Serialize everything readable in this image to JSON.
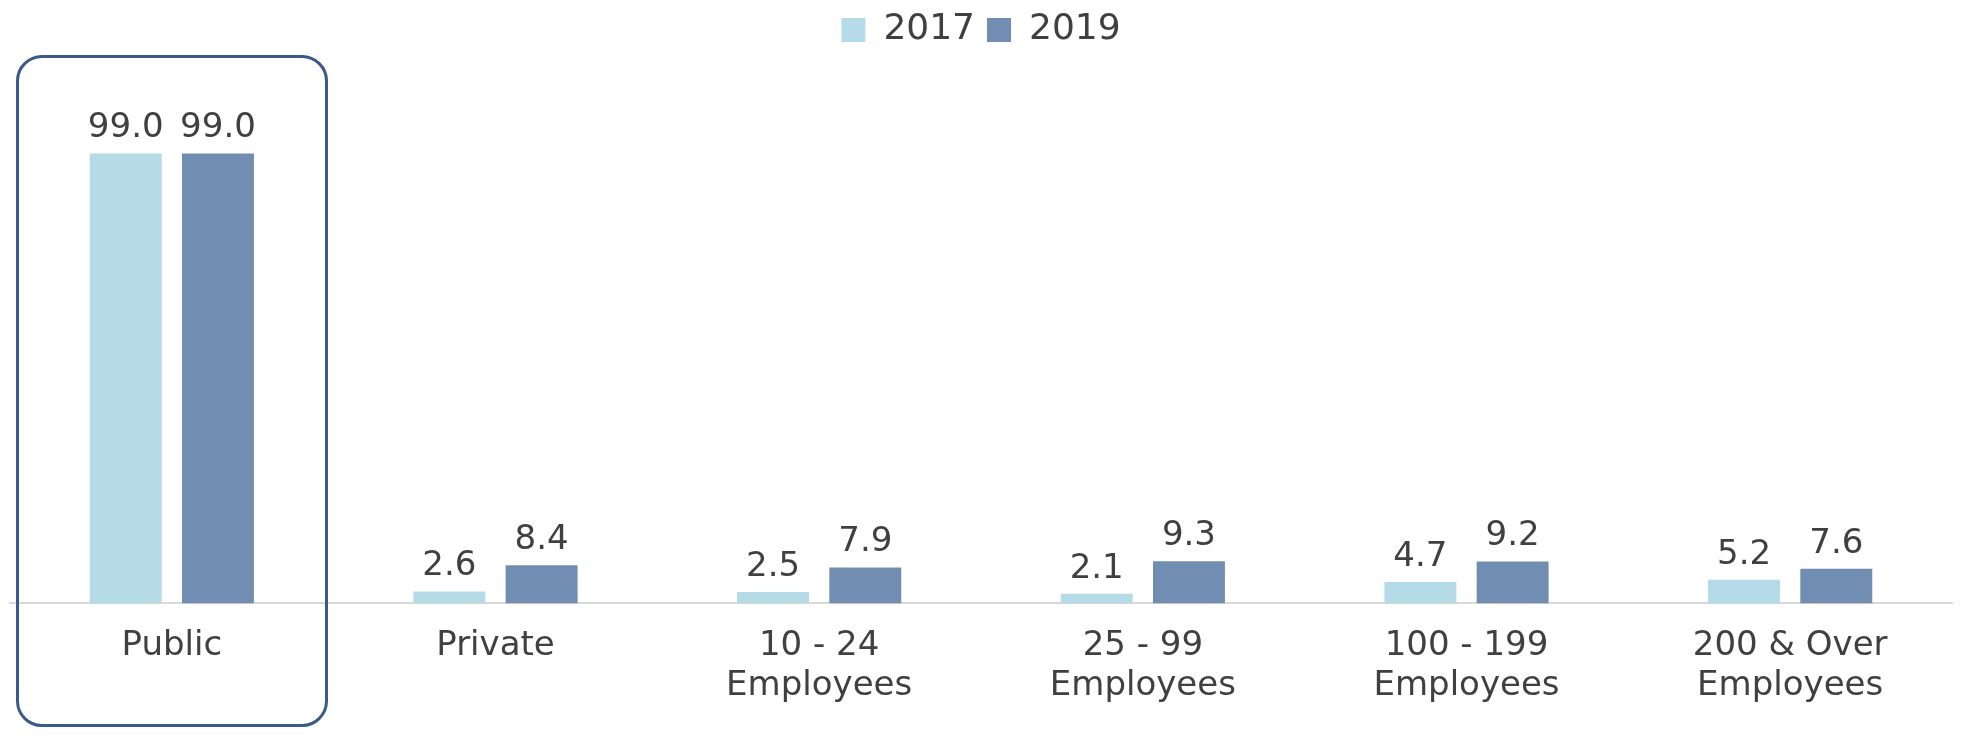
{
  "chart_data": {
    "type": "bar",
    "categories": [
      "Public",
      "Private",
      "10 - 24 Employees",
      "25 - 99 Employees",
      "100 - 199 Employees",
      "200 & Over Employees"
    ],
    "series": [
      {
        "name": "2017",
        "color": "#b4dbe7",
        "values": [
          99.0,
          2.6,
          2.5,
          2.1,
          4.7,
          5.2
        ],
        "value_labels": [
          "99.0",
          "2.6",
          "2.5",
          "2.1",
          "4.7",
          "5.2"
        ]
      },
      {
        "name": "2019",
        "color": "#728db2",
        "values": [
          99.0,
          8.4,
          7.9,
          9.3,
          9.2,
          7.6
        ],
        "value_labels": [
          "99.0",
          "8.4",
          "7.9",
          "9.3",
          "9.2",
          "7.6"
        ]
      }
    ],
    "legend": "top",
    "grid": false
  }
}
